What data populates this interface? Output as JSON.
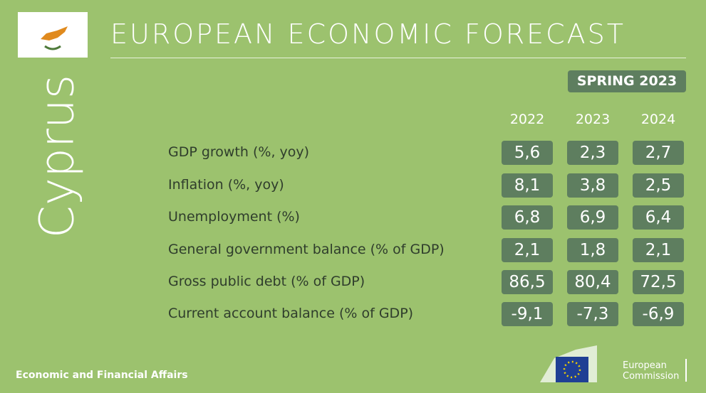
{
  "header": {
    "title": "EUROPEAN ECONOMIC FORECAST",
    "season": "SPRING 2023",
    "country": "Cyprus"
  },
  "table": {
    "columns": [
      "2022",
      "2023",
      "2024"
    ],
    "rows": [
      {
        "label": "GDP growth (%, yoy)",
        "values": [
          "5,6",
          "2,3",
          "2,7"
        ]
      },
      {
        "label": "Inflation (%, yoy)",
        "values": [
          "8,1",
          "3,8",
          "2,5"
        ]
      },
      {
        "label": "Unemployment (%)",
        "values": [
          "6,8",
          "6,9",
          "6,4"
        ]
      },
      {
        "label": "General government balance (% of GDP)",
        "values": [
          "2,1",
          "1,8",
          "2,1"
        ]
      },
      {
        "label": "Gross public debt (% of GDP)",
        "values": [
          "86,5",
          "80,4",
          "72,5"
        ]
      },
      {
        "label": "Current account balance (% of GDP)",
        "values": [
          "-9,1",
          "-7,3",
          "-6,9"
        ]
      }
    ]
  },
  "footer": {
    "text": "Economic and Financial Affairs",
    "logo_lines": [
      "European",
      "Commission"
    ]
  }
}
